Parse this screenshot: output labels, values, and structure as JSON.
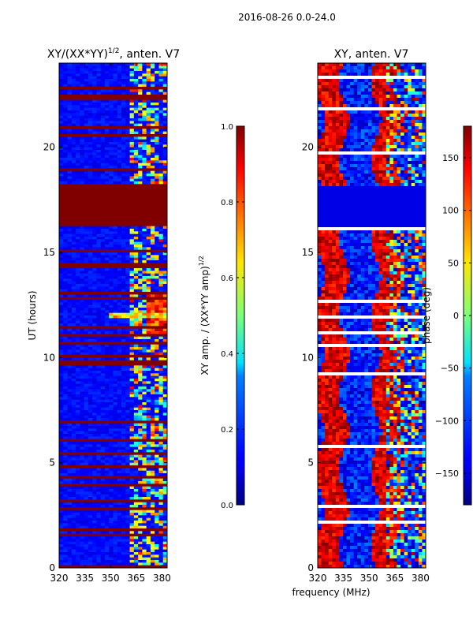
{
  "page_title": "2016-08-26 0.0-24.0",
  "xlabel_shared": "frequency (MHz)",
  "chart_data": [
    {
      "type": "heatmap",
      "title_parts": [
        "XY/(XX*YY)",
        "1/2",
        ", anten. V7"
      ],
      "title": "XY/(XX*YY)^{1/2}, anten. V7",
      "ylabel": "UT (hours)",
      "xlim": [
        320,
        383
      ],
      "ylim": [
        0,
        24
      ],
      "xticks": [
        320,
        335,
        350,
        365,
        380
      ],
      "yticks": [
        0,
        5,
        10,
        15,
        20
      ],
      "colorbar": {
        "label_parts": [
          "XY amp. / (XX*YY amp)",
          "1/2"
        ],
        "label": "XY amp. / (XX*YY amp)^{1/2}",
        "range": [
          0.0,
          1.0
        ],
        "ticks": [
          "0.0",
          "0.2",
          "0.4",
          "0.6",
          "0.8",
          "1.0"
        ],
        "colormap": "jet"
      },
      "features": {
        "flagged_ut_band": [
          16.2,
          18.2
        ],
        "hot_frequency_range": [
          362,
          383
        ],
        "rfi_event_ut": [
          11.0,
          13.0
        ]
      }
    },
    {
      "type": "heatmap",
      "title": "XY, anten. V7",
      "ylabel": "",
      "xlim": [
        320,
        383
      ],
      "ylim": [
        0,
        24
      ],
      "xticks": [
        320,
        335,
        350,
        365,
        380
      ],
      "yticks": [
        0,
        5,
        10,
        15,
        20
      ],
      "colorbar": {
        "label": "phase (deg)",
        "range": [
          -180,
          180
        ],
        "ticks": [
          "−150",
          "−100",
          "−50",
          "0",
          "50",
          "100",
          "150"
        ],
        "colormap": "jet"
      },
      "features": {
        "flagged_ut_band": [
          16.2,
          18.2
        ]
      }
    }
  ]
}
